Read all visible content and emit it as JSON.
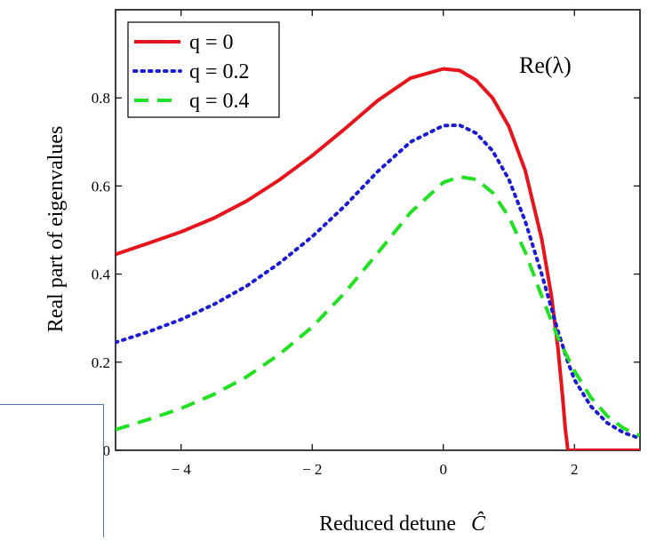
{
  "chart_data": {
    "type": "line",
    "xlabel": "Reduced detune",
    "xlabel_symbol": "Ĉ",
    "ylabel": "Real part of eigenvalues",
    "annotation": "Re(λ)",
    "xlim": [
      -5,
      3
    ],
    "ylim": [
      0,
      1
    ],
    "x_ticks": [
      -4,
      -2,
      0,
      2
    ],
    "x_tick_labels": [
      "− 4",
      "− 2",
      "0",
      "2"
    ],
    "y_ticks": [
      0,
      0.2,
      0.4,
      0.6,
      0.8
    ],
    "y_tick_labels": [
      "0",
      "0.2",
      "0.4",
      "0.6",
      "0.8"
    ],
    "legend_position": "top-left",
    "grid": false,
    "series": [
      {
        "name": "q = 0",
        "color": "#e8141c",
        "style": "solid",
        "x": [
          -5,
          -4.5,
          -4,
          -3.5,
          -3,
          -2.5,
          -2,
          -1.5,
          -1,
          -0.5,
          0,
          0.25,
          0.5,
          0.75,
          1,
          1.25,
          1.5,
          1.65,
          1.75,
          1.82,
          1.86,
          1.9,
          2.5,
          3
        ],
        "y": [
          0.445,
          0.47,
          0.496,
          0.527,
          0.566,
          0.614,
          0.669,
          0.73,
          0.794,
          0.845,
          0.866,
          0.862,
          0.84,
          0.8,
          0.735,
          0.635,
          0.48,
          0.35,
          0.23,
          0.12,
          0.05,
          0.0,
          0.0,
          0.0
        ]
      },
      {
        "name": "q = 0.2",
        "color": "#1b1bd6",
        "style": "dotted",
        "x": [
          -5,
          -4.5,
          -4,
          -3.5,
          -3,
          -2.5,
          -2,
          -1.5,
          -1,
          -0.5,
          0,
          0.25,
          0.5,
          0.75,
          1,
          1.25,
          1.5,
          1.75,
          1.9,
          2,
          2.25,
          2.5,
          2.75,
          3
        ],
        "y": [
          0.245,
          0.269,
          0.297,
          0.331,
          0.373,
          0.425,
          0.485,
          0.555,
          0.633,
          0.7,
          0.737,
          0.738,
          0.72,
          0.68,
          0.615,
          0.52,
          0.4,
          0.27,
          0.2,
          0.16,
          0.1,
          0.062,
          0.04,
          0.027
        ]
      },
      {
        "name": "q = 0.4",
        "color": "#22e022",
        "style": "dashed",
        "x": [
          -5,
          -4.5,
          -4,
          -3.5,
          -3,
          -2.5,
          -2,
          -1.5,
          -1,
          -0.5,
          0,
          0.25,
          0.5,
          0.75,
          1,
          1.25,
          1.5,
          1.75,
          2,
          2.25,
          2.5,
          2.75,
          3
        ],
        "y": [
          0.047,
          0.07,
          0.095,
          0.127,
          0.167,
          0.218,
          0.28,
          0.358,
          0.448,
          0.54,
          0.608,
          0.621,
          0.615,
          0.585,
          0.53,
          0.45,
          0.35,
          0.255,
          0.18,
          0.12,
          0.078,
          0.05,
          0.033
        ]
      }
    ]
  }
}
